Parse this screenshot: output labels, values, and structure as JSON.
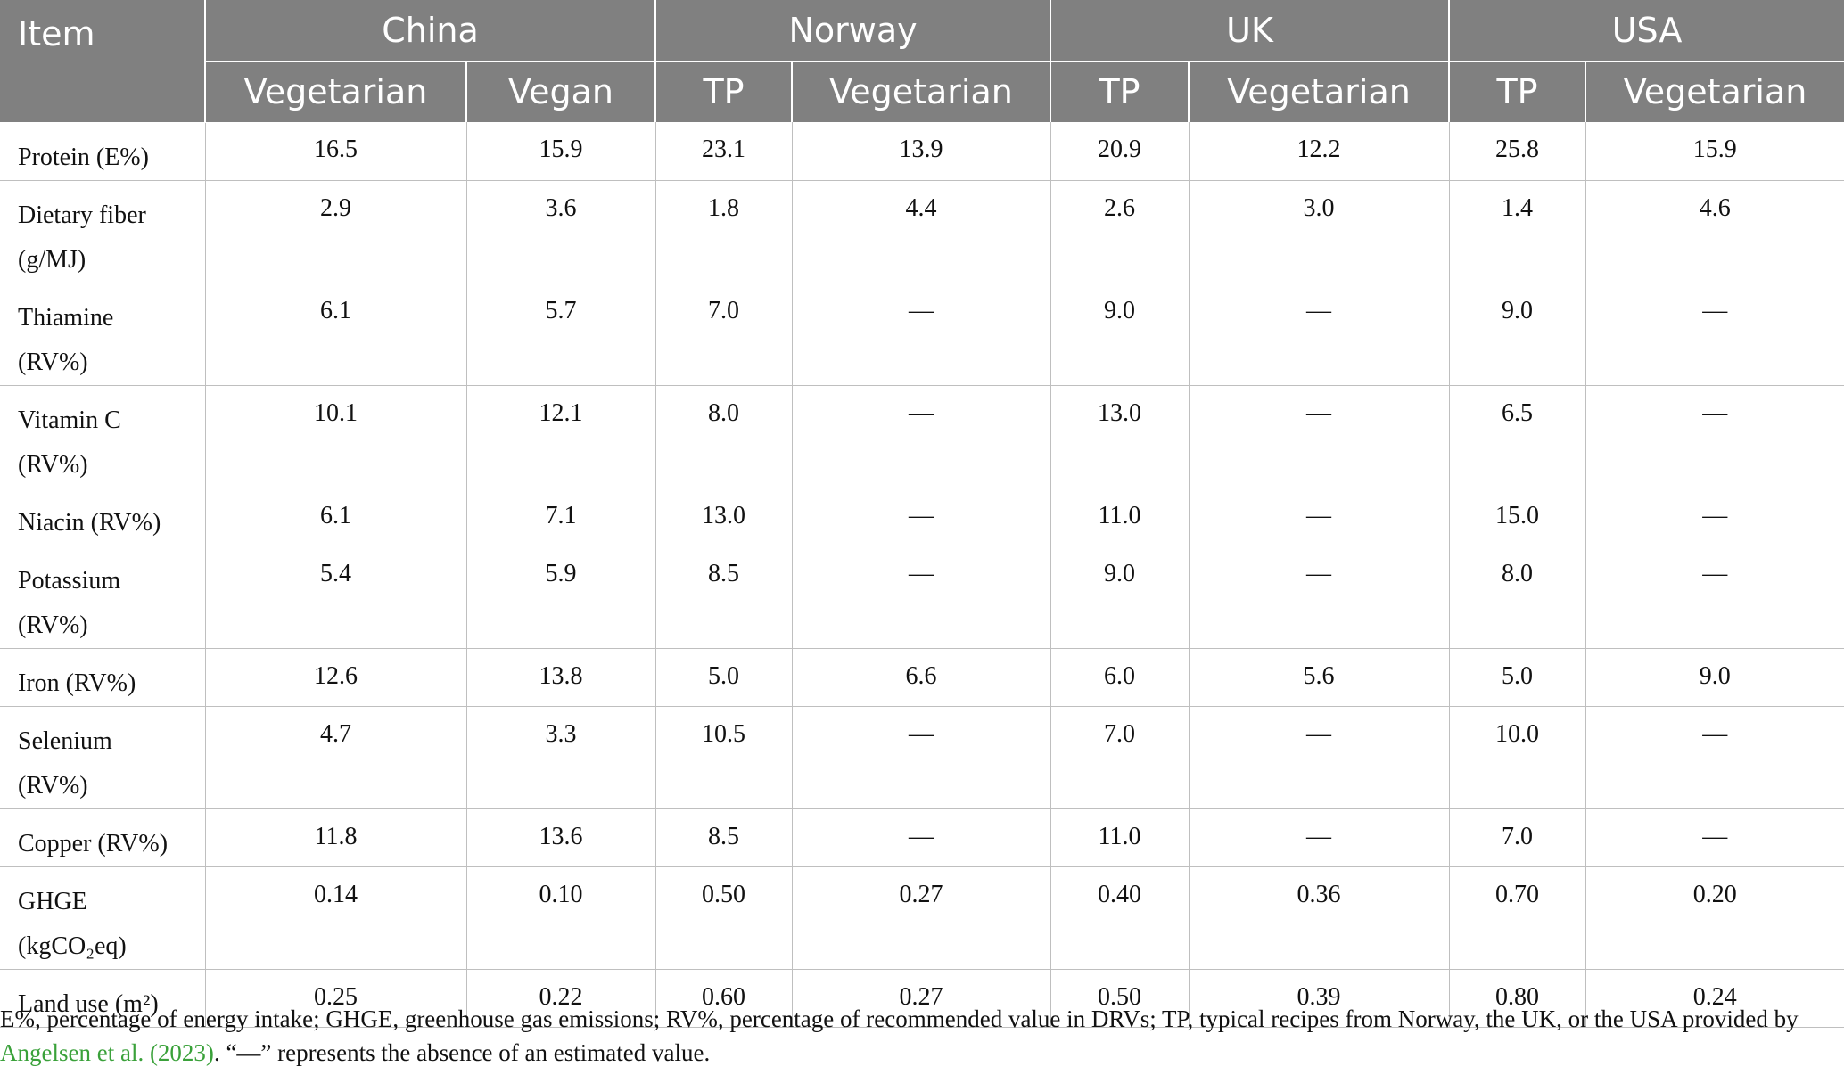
{
  "header": {
    "item": "Item",
    "groups": [
      {
        "label": "China",
        "subs": [
          "Vegetarian",
          "Vegan"
        ]
      },
      {
        "label": "Norway",
        "subs": [
          "TP",
          "Vegetarian"
        ]
      },
      {
        "label": "UK",
        "subs": [
          "TP",
          "Vegetarian"
        ]
      },
      {
        "label": "USA",
        "subs": [
          "TP",
          "Vegetarian"
        ]
      }
    ]
  },
  "rows": [
    {
      "item": [
        "Protein (E%)"
      ],
      "values": [
        "16.5",
        "15.9",
        "23.1",
        "13.9",
        "20.9",
        "12.2",
        "25.8",
        "15.9"
      ]
    },
    {
      "item": [
        "Dietary fiber",
        "(g/MJ)"
      ],
      "values": [
        "2.9",
        "3.6",
        "1.8",
        "4.4",
        "2.6",
        "3.0",
        "1.4",
        "4.6"
      ]
    },
    {
      "item": [
        "Thiamine",
        "(RV%)"
      ],
      "values": [
        "6.1",
        "5.7",
        "7.0",
        "—",
        "9.0",
        "—",
        "9.0",
        "—"
      ]
    },
    {
      "item": [
        "Vitamin C",
        "(RV%)"
      ],
      "values": [
        "10.1",
        "12.1",
        "8.0",
        "—",
        "13.0",
        "—",
        "6.5",
        "—"
      ]
    },
    {
      "item": [
        "Niacin (RV%)"
      ],
      "values": [
        "6.1",
        "7.1",
        "13.0",
        "—",
        "11.0",
        "—",
        "15.0",
        "—"
      ]
    },
    {
      "item": [
        "Potassium",
        "(RV%)"
      ],
      "values": [
        "5.4",
        "5.9",
        "8.5",
        "—",
        "9.0",
        "—",
        "8.0",
        "—"
      ]
    },
    {
      "item": [
        "Iron (RV%)"
      ],
      "values": [
        "12.6",
        "13.8",
        "5.0",
        "6.6",
        "6.0",
        "5.6",
        "5.0",
        "9.0"
      ]
    },
    {
      "item": [
        "Selenium",
        "(RV%)"
      ],
      "values": [
        "4.7",
        "3.3",
        "10.5",
        "—",
        "7.0",
        "—",
        "10.0",
        "—"
      ]
    },
    {
      "item": [
        "Copper (RV%)"
      ],
      "values": [
        "11.8",
        "13.6",
        "8.5",
        "—",
        "11.0",
        "—",
        "7.0",
        "—"
      ]
    },
    {
      "item": [
        "GHGE",
        "(kgCO₂eq)"
      ],
      "values": [
        "0.14",
        "0.10",
        "0.50",
        "0.27",
        "0.40",
        "0.36",
        "0.70",
        "0.20"
      ]
    },
    {
      "item": [
        "Land use (m²)"
      ],
      "values": [
        "0.25",
        "0.22",
        "0.60",
        "0.27",
        "0.50",
        "0.39",
        "0.80",
        "0.24"
      ]
    }
  ],
  "note": {
    "part1": "E%, percentage of energy intake; GHGE, greenhouse gas emissions; RV%, percentage of recommended value in DRVs; TP, typical recipes from Norway, the UK, or the USA provided by",
    "link": "Angelsen et al. (2023)",
    "part2": ". “—” represents the absence of an estimated value."
  }
}
